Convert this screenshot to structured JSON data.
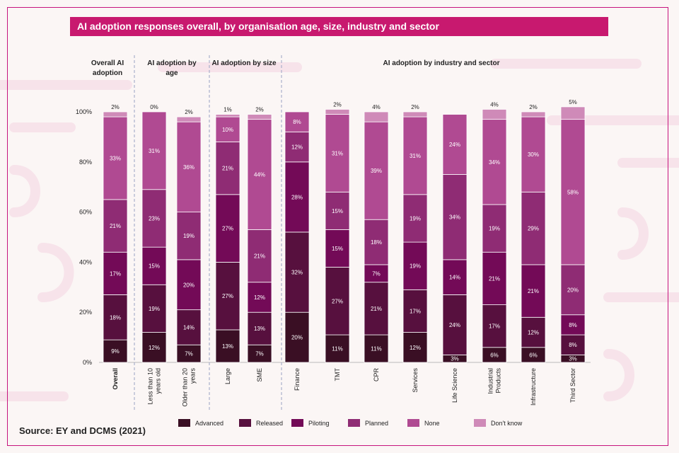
{
  "title": "AI adoption responses overall, by organisation age, size, industry and sector",
  "source": "Source: EY and DCMS (2021)",
  "colors": {
    "accent": "#c8196f",
    "series": [
      "#3a0f24",
      "#57103e",
      "#730a57",
      "#8f2c74",
      "#b04a92",
      "#cf8ab8"
    ]
  },
  "chart_data": {
    "type": "bar",
    "stacked": true,
    "ylim": [
      0,
      100
    ],
    "yticks": [
      "0%",
      "20%",
      "40%",
      "60%",
      "80%",
      "100%"
    ],
    "legend": [
      "Advanced",
      "Released",
      "Piloting",
      "Planned",
      "None",
      "Don't know"
    ],
    "groups": [
      {
        "label": "Overall AI adoption",
        "label_lines": [
          "Overall AI",
          "adoption"
        ]
      },
      {
        "label": "AI adoption by age",
        "label_lines": [
          "AI adoption by",
          "age"
        ]
      },
      {
        "label": "AI adoption by size",
        "label_lines": [
          "AI adoption by size"
        ]
      },
      {
        "label": "AI adoption by industry and sector",
        "label_lines": [
          "AI adoption by industry and sector"
        ]
      }
    ],
    "categories": [
      {
        "name": "Overall",
        "lines": [
          "Overall"
        ],
        "group": 0,
        "values": [
          9,
          18,
          17,
          21,
          33,
          2
        ],
        "labels": [
          "9%",
          "18%",
          "17%",
          "21%",
          "33%",
          "2%"
        ]
      },
      {
        "name": "Less than 10 years old",
        "lines": [
          "Less than 10",
          "years old"
        ],
        "group": 1,
        "values": [
          12,
          19,
          15,
          23,
          31,
          0
        ],
        "labels": [
          "12%",
          "19%",
          "15%",
          "23%",
          "31%",
          "0%"
        ]
      },
      {
        "name": "Older than 20 years",
        "lines": [
          "Older than 20",
          "years"
        ],
        "group": 1,
        "values": [
          7,
          14,
          20,
          19,
          36,
          2
        ],
        "labels": [
          "7%",
          "14%",
          "20%",
          "19%",
          "36%",
          "2%"
        ]
      },
      {
        "name": "Large",
        "lines": [
          "Large"
        ],
        "group": 2,
        "values": [
          13,
          27,
          27,
          21,
          10,
          1
        ],
        "labels": [
          "13%",
          "27%",
          "27%",
          "21%",
          "10%",
          "1%"
        ]
      },
      {
        "name": "SME",
        "lines": [
          "SME"
        ],
        "group": 2,
        "values": [
          7,
          13,
          12,
          21,
          44,
          2
        ],
        "labels": [
          "7%",
          "13%",
          "12%",
          "21%",
          "44%",
          "2%"
        ]
      },
      {
        "name": "Finance",
        "lines": [
          "Finance"
        ],
        "group": 3,
        "values": [
          20,
          32,
          28,
          12,
          8,
          0
        ],
        "labels": [
          "20%",
          "32%",
          "28%",
          "12%",
          "8%",
          ""
        ]
      },
      {
        "name": "TMT",
        "lines": [
          "TMT"
        ],
        "group": 3,
        "values": [
          11,
          27,
          15,
          15,
          31,
          2
        ],
        "labels": [
          "11%",
          "27%",
          "15%",
          "15%",
          "31%",
          "2%"
        ]
      },
      {
        "name": "CPR",
        "lines": [
          "CPR"
        ],
        "group": 3,
        "values": [
          11,
          21,
          7,
          18,
          39,
          4
        ],
        "labels": [
          "11%",
          "21%",
          "7%",
          "18%",
          "39%",
          "4%"
        ]
      },
      {
        "name": "Services",
        "lines": [
          "Services"
        ],
        "group": 3,
        "values": [
          12,
          17,
          19,
          19,
          31,
          2
        ],
        "labels": [
          "12%",
          "17%",
          "19%",
          "19%",
          "31%",
          "2%"
        ]
      },
      {
        "name": "Life Science",
        "lines": [
          "Life Science"
        ],
        "group": 3,
        "values": [
          3,
          24,
          14,
          34,
          24,
          0
        ],
        "labels": [
          "3%",
          "24%",
          "14%",
          "34%",
          "24%",
          ""
        ]
      },
      {
        "name": "Industrial Products",
        "lines": [
          "Industrial",
          "Products"
        ],
        "group": 3,
        "values": [
          6,
          17,
          21,
          19,
          34,
          4
        ],
        "labels": [
          "6%",
          "17%",
          "21%",
          "19%",
          "34%",
          "4%"
        ]
      },
      {
        "name": "Infrastructure",
        "lines": [
          "Infrastructure"
        ],
        "group": 3,
        "values": [
          6,
          12,
          21,
          29,
          30,
          2
        ],
        "labels": [
          "6%",
          "12%",
          "21%",
          "29%",
          "30%",
          "2%"
        ]
      },
      {
        "name": "Third Sector",
        "lines": [
          "Third Sector"
        ],
        "group": 3,
        "values": [
          3,
          8,
          8,
          20,
          58,
          5
        ],
        "labels": [
          "3%",
          "8%",
          "8%",
          "20%",
          "58%",
          "5%"
        ]
      }
    ]
  }
}
